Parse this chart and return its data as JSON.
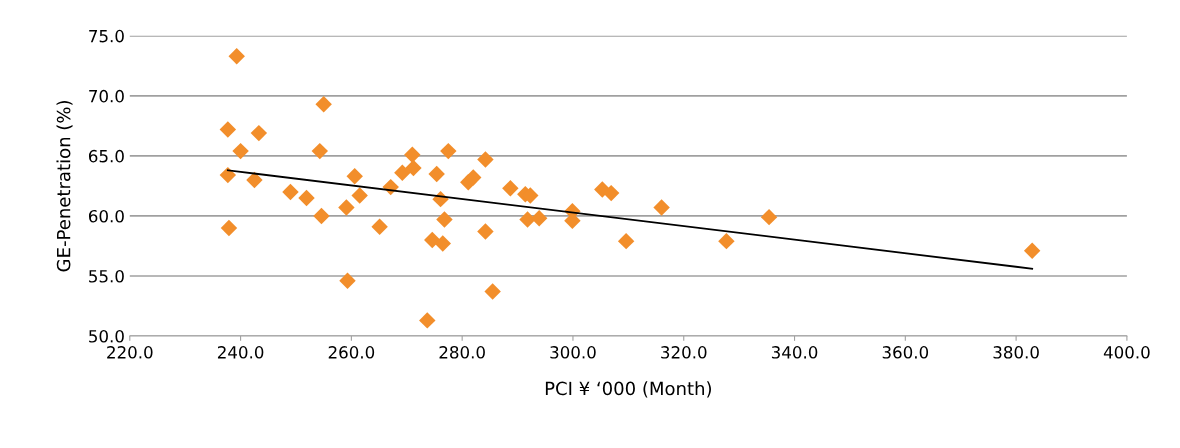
{
  "chart_data": {
    "type": "scatter",
    "xlabel": "PCI ¥ ‘000 (Month)",
    "ylabel": "GE-Penetration (%)",
    "xlim": [
      220,
      400
    ],
    "xticks": [
      {
        "value": 220,
        "label": "220.0"
      },
      {
        "value": 240,
        "label": "240.0"
      },
      {
        "value": 260,
        "label": "260.0"
      },
      {
        "value": 280,
        "label": "280.0"
      },
      {
        "value": 300,
        "label": "300.0"
      },
      {
        "value": 320,
        "label": "320.0"
      },
      {
        "value": 340,
        "label": "340.0"
      },
      {
        "value": 360,
        "label": "360.0"
      },
      {
        "value": 380,
        "label": "380.0"
      },
      {
        "value": 400,
        "label": "400.0"
      }
    ],
    "ylim": [
      50,
      75
    ],
    "yticks": [
      {
        "value": 50,
        "label": "50.0"
      },
      {
        "value": 55,
        "label": "55.0"
      },
      {
        "value": 60,
        "label": "60.0"
      },
      {
        "value": 65,
        "label": "65.0"
      },
      {
        "value": 70,
        "label": "70.0"
      },
      {
        "value": 75,
        "label": "75.0"
      }
    ],
    "grid": "y",
    "legend": false,
    "marker": "diamond",
    "series": [
      {
        "color": "#f28e2b",
        "x": [
          239.3,
          237.7,
          243.3,
          240.0,
          237.7,
          242.5,
          237.9,
          249.0,
          251.9,
          255.0,
          254.3,
          254.6,
          259.1,
          259.3,
          260.6,
          261.5,
          265.1,
          267.1,
          269.2,
          271.0,
          271.2,
          273.7,
          274.6,
          275.4,
          276.1,
          276.5,
          276.8,
          277.5,
          281.1,
          282.0,
          284.2,
          284.2,
          285.5,
          288.7,
          291.4,
          292.3,
          291.8,
          293.9,
          299.9,
          299.9,
          305.3,
          306.9,
          309.6,
          316.0,
          327.7,
          335.4,
          382.9
        ],
        "values": [
          73.3,
          67.2,
          66.9,
          65.4,
          63.4,
          63.0,
          59.0,
          62.0,
          61.5,
          69.3,
          65.4,
          60.0,
          60.7,
          54.6,
          63.3,
          61.7,
          59.1,
          62.4,
          63.6,
          65.1,
          64.0,
          51.3,
          58.0,
          63.5,
          61.4,
          57.7,
          59.7,
          65.4,
          62.8,
          63.2,
          64.7,
          58.7,
          53.7,
          62.3,
          61.8,
          61.7,
          59.7,
          59.8,
          60.4,
          59.6,
          62.2,
          61.9,
          57.9,
          60.7,
          57.9,
          59.9,
          57.1
        ]
      },
      {
        "type": "line",
        "color": "#000000",
        "marker": "none",
        "line_style": "solid",
        "x": [
          237.7,
          382.9
        ],
        "values": [
          63.8,
          55.6
        ]
      }
    ]
  }
}
